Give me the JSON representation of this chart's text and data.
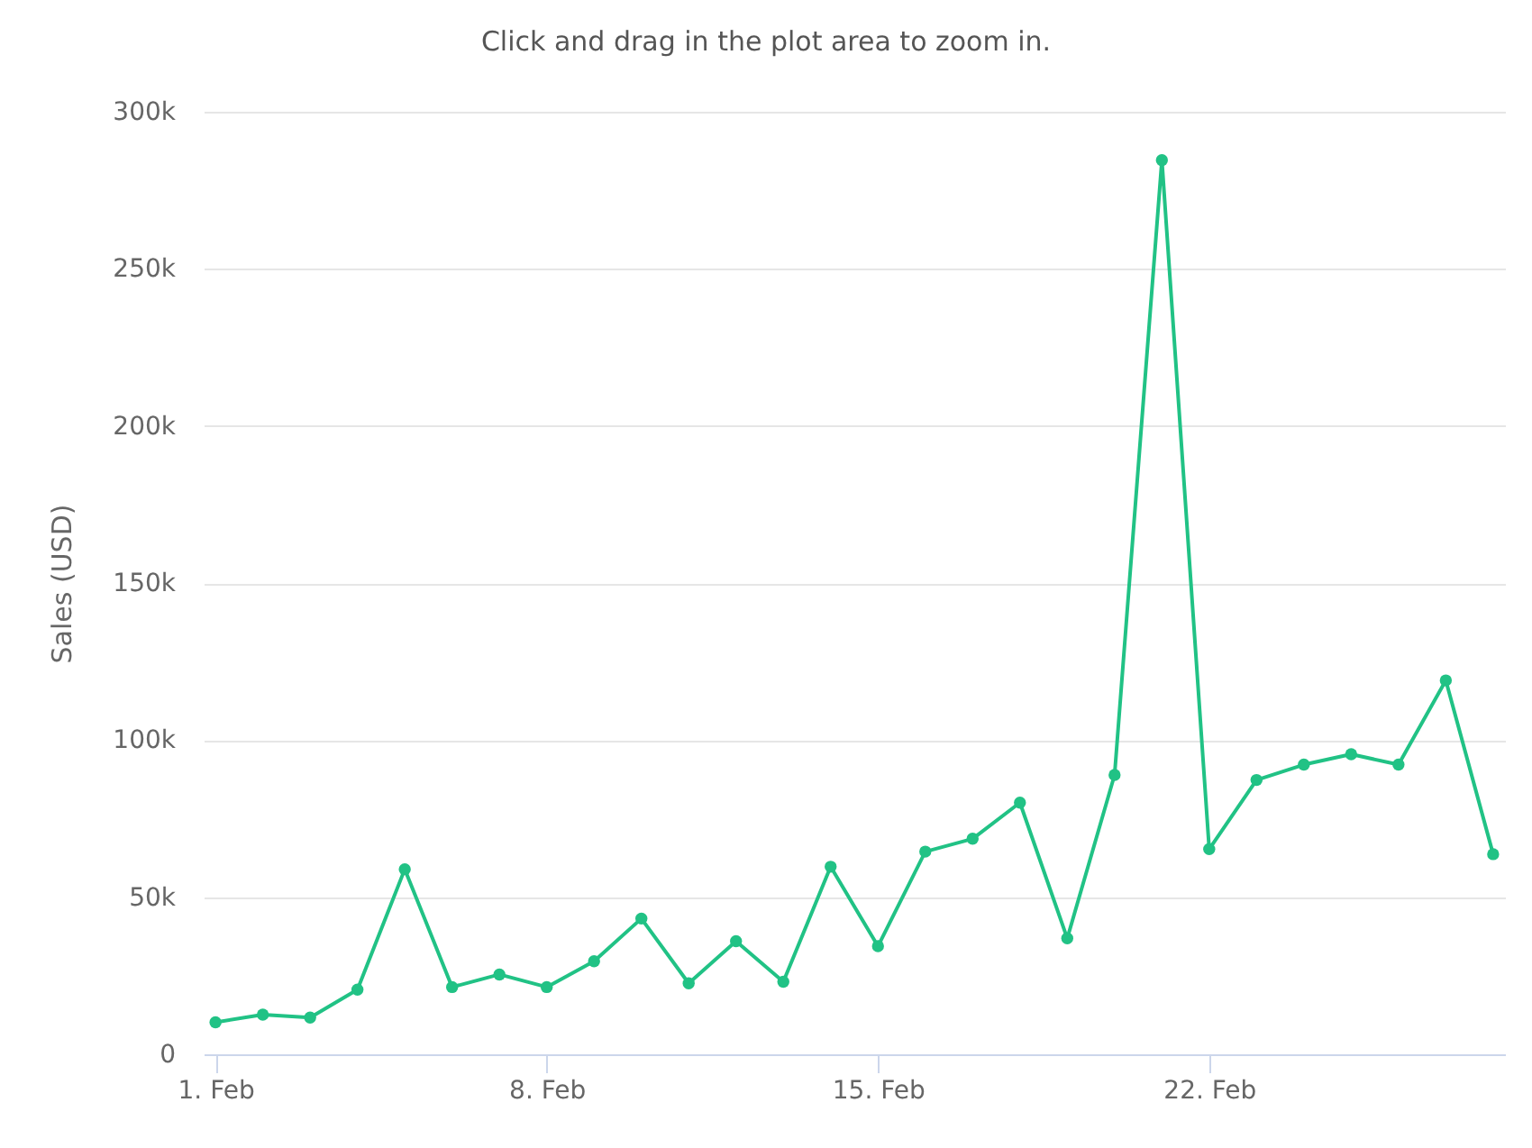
{
  "chart_data": {
    "type": "line",
    "title": "Click and drag in the plot area to zoom in.",
    "ylabel": "Sales (USD)",
    "x": [
      "--02-01",
      "--02-02",
      "--02-03",
      "--02-04",
      "--02-05",
      "--02-06",
      "--02-07",
      "--02-08",
      "--02-09",
      "--02-10",
      "--02-11",
      "--02-12",
      "--02-13",
      "--02-14",
      "--02-15",
      "--02-16",
      "--02-17",
      "--02-18",
      "--02-19",
      "--02-20",
      "--02-21",
      "--02-22",
      "--02-23",
      "--02-24",
      "--02-25",
      "--02-26",
      "--02-27",
      "--02-28"
    ],
    "values": [
      10200,
      12600,
      11700,
      20600,
      58900,
      21400,
      25400,
      21400,
      29600,
      43200,
      22600,
      36000,
      23100,
      59700,
      34400,
      64500,
      68600,
      80100,
      36900,
      88900,
      284600,
      65300,
      87300,
      92200,
      95500,
      92200,
      119000,
      63700
    ],
    "color": "#21c285",
    "marker": "circle",
    "xlim": [
      "--01-31T18:00",
      "--02-28T06:00"
    ],
    "xticks": [
      {
        "value": "--02-01",
        "label": "1. Feb"
      },
      {
        "value": "--02-08",
        "label": "8. Feb"
      },
      {
        "value": "--02-15",
        "label": "15. Feb"
      },
      {
        "value": "--02-22",
        "label": "22. Feb"
      }
    ],
    "ylim": [
      0,
      300000
    ],
    "yticks": [
      0,
      {
        "value": 50000,
        "label": "50k"
      },
      {
        "value": 100000,
        "label": "100k"
      },
      {
        "value": 150000,
        "label": "150k"
      },
      {
        "value": 200000,
        "label": "200k"
      },
      {
        "value": 250000,
        "label": "250k"
      },
      {
        "value": 300000,
        "label": "300k"
      }
    ],
    "grid": "y"
  }
}
